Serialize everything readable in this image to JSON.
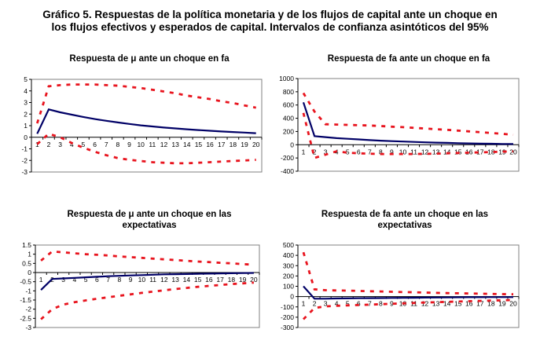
{
  "title_line1": "Gráfico 5. Respuestas de la política monetaria y de los flujos de capital ante un choque en",
  "title_line2": "los flujos efectivos y esperados de capital. Intervalos de confianza asintóticos del 95%",
  "colors": {
    "central": "#000066",
    "bands": "#e8141e",
    "frame": "#808080"
  },
  "chart_data": [
    {
      "type": "line",
      "title_line1": "Respuesta de μ ante un choque en fa",
      "title_line2": "",
      "x": [
        1,
        2,
        3,
        4,
        5,
        6,
        7,
        8,
        9,
        10,
        11,
        12,
        13,
        14,
        15,
        16,
        17,
        18,
        19,
        20
      ],
      "ylim": [
        -3,
        5
      ],
      "yticks": [
        5,
        4,
        3,
        2,
        1,
        0,
        -1,
        -2,
        -3
      ],
      "series": [
        {
          "name": "response",
          "values": [
            0.3,
            2.4,
            2.15,
            1.95,
            1.75,
            1.57,
            1.42,
            1.28,
            1.15,
            1.03,
            0.93,
            0.84,
            0.76,
            0.69,
            0.62,
            0.56,
            0.5,
            0.45,
            0.4,
            0.35
          ]
        },
        {
          "name": "upper",
          "values": [
            1.2,
            4.4,
            4.5,
            4.55,
            4.55,
            4.55,
            4.5,
            4.45,
            4.35,
            4.25,
            4.1,
            3.95,
            3.8,
            3.6,
            3.45,
            3.3,
            3.1,
            2.95,
            2.75,
            2.55
          ]
        },
        {
          "name": "lower",
          "values": [
            -0.6,
            0.3,
            0.0,
            -0.5,
            -0.9,
            -1.25,
            -1.55,
            -1.8,
            -1.95,
            -2.05,
            -2.15,
            -2.2,
            -2.25,
            -2.25,
            -2.2,
            -2.15,
            -2.1,
            -2.05,
            -2.0,
            -1.95
          ]
        }
      ]
    },
    {
      "type": "line",
      "title_line1": "Respuesta de fa ante un choque en fa",
      "title_line2": "",
      "x": [
        1,
        2,
        3,
        4,
        5,
        6,
        7,
        8,
        9,
        10,
        11,
        12,
        13,
        14,
        15,
        16,
        17,
        18,
        19,
        20
      ],
      "ylim": [
        -400,
        1000
      ],
      "yticks": [
        1000,
        800,
        600,
        400,
        200,
        0,
        -200,
        -400
      ],
      "series": [
        {
          "name": "response",
          "values": [
            640,
            130,
            115,
            100,
            90,
            80,
            70,
            62,
            55,
            48,
            42,
            37,
            32,
            28,
            24,
            20,
            17,
            15,
            12,
            10
          ]
        },
        {
          "name": "upper",
          "values": [
            780,
            500,
            310,
            305,
            300,
            295,
            290,
            282,
            273,
            265,
            255,
            245,
            235,
            225,
            213,
            202,
            190,
            178,
            165,
            150
          ]
        },
        {
          "name": "lower",
          "values": [
            480,
            -200,
            -150,
            -100,
            -120,
            -130,
            -135,
            -140,
            -140,
            -140,
            -140,
            -138,
            -135,
            -130,
            -125,
            -120,
            -115,
            -110,
            -105,
            -100
          ]
        }
      ]
    },
    {
      "type": "line",
      "title_line1": "Respuesta de μ ante un choque en las",
      "title_line2": "expectativas",
      "x": [
        1,
        2,
        3,
        4,
        5,
        6,
        7,
        8,
        9,
        10,
        11,
        12,
        13,
        14,
        15,
        16,
        17,
        18,
        19,
        20
      ],
      "ylim": [
        -3,
        1.5
      ],
      "yticks": [
        1.5,
        1,
        0.5,
        0,
        -0.5,
        -1,
        -1.5,
        -2,
        -2.5,
        -3
      ],
      "series": [
        {
          "name": "response",
          "values": [
            -0.95,
            -0.35,
            -0.32,
            -0.29,
            -0.26,
            -0.23,
            -0.2,
            -0.18,
            -0.16,
            -0.14,
            -0.12,
            -0.1,
            -0.09,
            -0.08,
            -0.07,
            -0.06,
            -0.05,
            -0.04,
            -0.03,
            -0.02
          ]
        },
        {
          "name": "upper",
          "values": [
            0.65,
            1.15,
            1.1,
            1.05,
            1.0,
            0.97,
            0.93,
            0.88,
            0.84,
            0.8,
            0.76,
            0.72,
            0.68,
            0.64,
            0.6,
            0.57,
            0.53,
            0.5,
            0.46,
            0.43
          ]
        },
        {
          "name": "lower",
          "values": [
            -2.55,
            -2.0,
            -1.75,
            -1.62,
            -1.52,
            -1.43,
            -1.35,
            -1.27,
            -1.19,
            -1.11,
            -1.04,
            -0.97,
            -0.9,
            -0.84,
            -0.78,
            -0.73,
            -0.68,
            -0.63,
            -0.59,
            -0.55
          ]
        }
      ]
    },
    {
      "type": "line",
      "title_line1": "Respuesta de fa ante un choque en las",
      "title_line2": "expectativas",
      "x": [
        1,
        2,
        3,
        4,
        5,
        6,
        7,
        8,
        9,
        10,
        11,
        12,
        13,
        14,
        15,
        16,
        17,
        18,
        19,
        20
      ],
      "ylim": [
        -300,
        500
      ],
      "yticks": [
        500,
        400,
        300,
        200,
        100,
        0,
        -100,
        -200,
        -300
      ],
      "series": [
        {
          "name": "response",
          "values": [
            100,
            -20,
            -20,
            -18,
            -17,
            -16,
            -15,
            -14,
            -13,
            -12,
            -11,
            -10,
            -9,
            -8,
            -7,
            -6,
            -6,
            -5,
            -5,
            -5
          ]
        },
        {
          "name": "upper",
          "values": [
            430,
            70,
            62,
            60,
            58,
            55,
            52,
            50,
            47,
            44,
            42,
            39,
            36,
            34,
            32,
            30,
            28,
            26,
            24,
            22
          ]
        },
        {
          "name": "lower",
          "values": [
            -220,
            -110,
            -95,
            -90,
            -85,
            -82,
            -78,
            -74,
            -70,
            -66,
            -62,
            -58,
            -55,
            -51,
            -48,
            -45,
            -42,
            -39,
            -36,
            -33
          ]
        }
      ]
    }
  ]
}
